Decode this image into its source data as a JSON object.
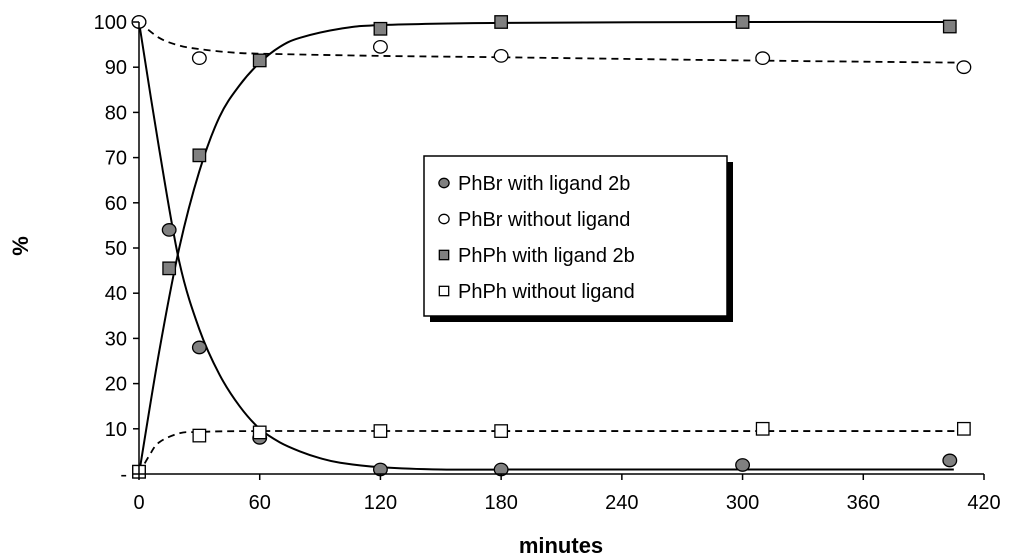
{
  "chart_data": {
    "type": "scatter",
    "title": "",
    "xlabel": "minutes",
    "ylabel": "%",
    "xlim": [
      0,
      420
    ],
    "ylim": [
      0,
      100
    ],
    "x_ticks": [
      "0",
      "60",
      "120",
      "180",
      "240",
      "300",
      "360",
      "420"
    ],
    "y_ticks": [
      "-",
      "10",
      "20",
      "30",
      "40",
      "50",
      "60",
      "70",
      "80",
      "90",
      "100"
    ],
    "grid": false,
    "legend_position": "center",
    "series": [
      {
        "name": "PhBr with ligand 2b",
        "marker": "circle",
        "fill": "#808080",
        "line": "solid",
        "points": [
          [
            0,
            100
          ],
          [
            15,
            54
          ],
          [
            30,
            28
          ],
          [
            60,
            8
          ],
          [
            120,
            1
          ],
          [
            180,
            1
          ],
          [
            300,
            2
          ],
          [
            403,
            3
          ]
        ],
        "fit": [
          [
            0,
            100
          ],
          [
            10,
            72
          ],
          [
            20,
            47
          ],
          [
            30,
            32
          ],
          [
            40,
            22
          ],
          [
            50,
            15
          ],
          [
            60,
            10
          ],
          [
            70,
            7
          ],
          [
            80,
            5
          ],
          [
            90,
            3.5
          ],
          [
            100,
            2.5
          ],
          [
            120,
            1.5
          ],
          [
            150,
            1
          ],
          [
            200,
            1
          ],
          [
            300,
            1
          ],
          [
            405,
            1
          ]
        ]
      },
      {
        "name": "PhBr without ligand",
        "marker": "circle",
        "fill": "#ffffff",
        "line": "dashed",
        "points": [
          [
            0,
            100
          ],
          [
            30,
            92
          ],
          [
            120,
            94.5
          ],
          [
            180,
            92.5
          ],
          [
            310,
            92
          ],
          [
            410,
            90
          ]
        ],
        "fit": [
          [
            0,
            100
          ],
          [
            10,
            96.5
          ],
          [
            20,
            94.8
          ],
          [
            30,
            94
          ],
          [
            45,
            93.3
          ],
          [
            60,
            93
          ],
          [
            120,
            92.5
          ],
          [
            180,
            92.2
          ],
          [
            300,
            91.5
          ],
          [
            410,
            91
          ]
        ]
      },
      {
        "name": "PhPh with ligand 2b",
        "marker": "square",
        "fill": "#808080",
        "line": "solid",
        "points": [
          [
            0,
            0.5
          ],
          [
            15,
            45.5
          ],
          [
            30,
            70.5
          ],
          [
            60,
            91.5
          ],
          [
            120,
            98.5
          ],
          [
            180,
            100
          ],
          [
            300,
            100
          ],
          [
            403,
            99
          ]
        ],
        "fit": [
          [
            0,
            0
          ],
          [
            10,
            27
          ],
          [
            20,
            50
          ],
          [
            30,
            67
          ],
          [
            40,
            79
          ],
          [
            50,
            86
          ],
          [
            60,
            91
          ],
          [
            70,
            94.5
          ],
          [
            80,
            96.5
          ],
          [
            100,
            98.5
          ],
          [
            120,
            99.3
          ],
          [
            180,
            99.8
          ],
          [
            300,
            100
          ],
          [
            405,
            100
          ]
        ]
      },
      {
        "name": "PhPh without ligand",
        "marker": "square",
        "fill": "#ffffff",
        "line": "dashed",
        "points": [
          [
            0,
            0.5
          ],
          [
            30,
            8.5
          ],
          [
            60,
            9.2
          ],
          [
            120,
            9.5
          ],
          [
            180,
            9.5
          ],
          [
            310,
            10
          ],
          [
            410,
            10
          ]
        ],
        "fit": [
          [
            0,
            0
          ],
          [
            5,
            4
          ],
          [
            10,
            7
          ],
          [
            20,
            9
          ],
          [
            30,
            9.3
          ],
          [
            60,
            9.5
          ],
          [
            180,
            9.5
          ],
          [
            300,
            9.5
          ],
          [
            410,
            9.5
          ]
        ]
      }
    ]
  }
}
